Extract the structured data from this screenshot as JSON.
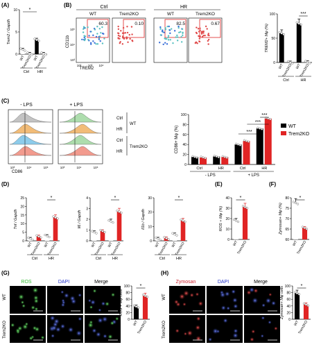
{
  "panels": {
    "A": {
      "label": "(A)",
      "ylabel": "Trem2 / Gapdh",
      "yticks": [
        "0",
        "5",
        "10"
      ],
      "groups": [
        "Ctrl",
        "HR"
      ],
      "genotypes": [
        "WT",
        "Trem2KO"
      ],
      "sig": "*"
    },
    "B": {
      "label": "(B)",
      "conditions": [
        "Ctrl",
        "HR"
      ],
      "genotypes": [
        "WT",
        "Trem2KO",
        "WT",
        "Trem2KO"
      ],
      "percentages": [
        "60.3",
        "0.10",
        "82.5",
        "0.67"
      ],
      "xlabel": "TREM2",
      "ylabel": "CD11b",
      "axis_ticks_x": [
        "10²",
        "10³",
        "10⁴"
      ],
      "axis_ticks_y": [
        "10³",
        "10⁴",
        "10⁵"
      ],
      "bar_ylabel": "TREM2+ Mφ (%)",
      "bar_yticks": [
        "0",
        "50",
        "100"
      ],
      "bar_groups": [
        "Ctrl",
        "HR"
      ],
      "sig": "***"
    },
    "C": {
      "label": "(C)",
      "conditions": [
        "- LPS",
        "+ LPS"
      ],
      "rows": [
        "Ctrl",
        "HR",
        "Ctrl",
        "HR"
      ],
      "row_groups": [
        "WT",
        "Trem2KO"
      ],
      "xlabel": "CD86",
      "axis_ticks_x": [
        "10³",
        "10⁴",
        "10⁵"
      ],
      "bar_ylabel": "CD86+ Mφ (%)",
      "bar_yticks": [
        "0",
        "20",
        "40",
        "60",
        "80",
        "100"
      ],
      "bar_groups": [
        "Ctrl",
        "HR",
        "Ctrl",
        "HR"
      ],
      "bar_conditions": [
        "- LPS",
        "+ LPS"
      ],
      "legend": [
        "WT",
        "Trem2KO"
      ],
      "sig": "***"
    },
    "D": {
      "label": "(D)",
      "genes": [
        "Tnf / Gapdh",
        "Il6 / Gapdh",
        "Il1b / Gapdh"
      ],
      "yticks": [
        [
          "0",
          "5",
          "10",
          "15",
          "20",
          "25"
        ],
        [
          "0",
          "1",
          "2",
          "3",
          "4"
        ],
        [
          "0",
          "10",
          "20",
          "30"
        ]
      ],
      "groups": [
        "Ctrl",
        "HR"
      ],
      "genotypes": [
        "WT",
        "Trem2KO"
      ],
      "sig": "*"
    },
    "E": {
      "label": "(E)",
      "ylabel": "ROS + Mφ (%)",
      "yticks": [
        "0",
        "10",
        "20",
        "30",
        "40"
      ],
      "genotypes": [
        "WT",
        "Trem2KO"
      ],
      "sig": "*"
    },
    "F": {
      "label": "(F)",
      "ylabel": "Zymosan+ Mφ (%)",
      "yticks": [
        "60",
        "65",
        "70",
        "75",
        "80"
      ],
      "genotypes": [
        "WT",
        "Trem2KO"
      ],
      "sig": "*"
    },
    "G": {
      "label": "(G)",
      "channels": [
        "ROS",
        "DAPI",
        "Merge"
      ],
      "rows": [
        "WT",
        "Trem2KO"
      ],
      "bar_ylabel": "ROS + Mφ cells",
      "bar_yticks": [
        "0",
        "20",
        "40",
        "60",
        "80",
        "100"
      ],
      "genotypes": [
        "WT",
        "Trem2KO"
      ],
      "sig": "*"
    },
    "H": {
      "label": "(H)",
      "channels": [
        "Zymosan",
        "DAPI",
        "Merge"
      ],
      "rows": [
        "WT",
        "Trem2KO"
      ],
      "bar_ylabel": "Zymosan+ Mφ cells",
      "bar_yticks": [
        "0",
        "20",
        "40",
        "60",
        "80",
        "100"
      ],
      "genotypes": [
        "WT",
        "Trem2KO"
      ],
      "sig": "*"
    }
  },
  "chart_data": [
    {
      "type": "bar",
      "panel": "A",
      "categories": [
        "Ctrl WT",
        "Ctrl Trem2KO",
        "HR WT",
        "HR Trem2KO"
      ],
      "values": [
        1.0,
        0.1,
        3.2,
        0.1
      ],
      "ylim": [
        0,
        10
      ]
    },
    {
      "type": "bar",
      "panel": "B",
      "categories": [
        "Ctrl WT",
        "Ctrl Trem2KO",
        "HR WT",
        "HR Trem2KO"
      ],
      "values": [
        60,
        0.1,
        80,
        0.7
      ],
      "ylim": [
        0,
        100
      ]
    },
    {
      "type": "bar",
      "panel": "C",
      "categories": [
        "-LPS Ctrl",
        "-LPS HR",
        "+LPS Ctrl",
        "+LPS HR"
      ],
      "series": [
        {
          "name": "WT",
          "values": [
            15,
            16,
            40,
            72
          ]
        },
        {
          "name": "Trem2KO",
          "values": [
            14,
            15,
            47,
            92
          ]
        }
      ],
      "ylim": [
        0,
        100
      ]
    },
    {
      "type": "bar",
      "panel": "D-Tnf",
      "categories": [
        "Ctrl WT",
        "Ctrl Trem2KO",
        "HR WT",
        "HR Trem2KO"
      ],
      "values": [
        1.2,
        2.5,
        2.8,
        13.5
      ],
      "ylim": [
        0,
        25
      ]
    },
    {
      "type": "bar",
      "panel": "D-Il6",
      "categories": [
        "Ctrl WT",
        "Ctrl Trem2KO",
        "HR WT",
        "HR Trem2KO"
      ],
      "values": [
        0.8,
        0.9,
        1.8,
        2.7
      ],
      "ylim": [
        0,
        4
      ]
    },
    {
      "type": "bar",
      "panel": "D-Il1b",
      "categories": [
        "Ctrl WT",
        "Ctrl Trem2KO",
        "HR WT",
        "HR Trem2KO"
      ],
      "values": [
        1.5,
        1.8,
        4.5,
        14
      ],
      "ylim": [
        0,
        30
      ]
    },
    {
      "type": "bar",
      "panel": "E",
      "categories": [
        "WT",
        "Trem2KO"
      ],
      "values": [
        18,
        31
      ],
      "ylim": [
        0,
        40
      ]
    },
    {
      "type": "bar",
      "panel": "F",
      "categories": [
        "WT",
        "Trem2KO"
      ],
      "values": [
        77.5,
        65.5
      ],
      "ylim": [
        60,
        80
      ]
    },
    {
      "type": "bar",
      "panel": "G",
      "categories": [
        "WT",
        "Trem2KO"
      ],
      "values": [
        38,
        70
      ],
      "ylim": [
        0,
        100
      ]
    },
    {
      "type": "bar",
      "panel": "H",
      "categories": [
        "WT",
        "Trem2KO"
      ],
      "values": [
        78,
        44
      ],
      "ylim": [
        0,
        100
      ]
    }
  ],
  "colors": {
    "wt": "#000000",
    "ko": "#e02424",
    "ros": "#2eb82e",
    "dapi": "#2233cc",
    "zymosan": "#cc1e2a",
    "gate": "#e02424"
  }
}
